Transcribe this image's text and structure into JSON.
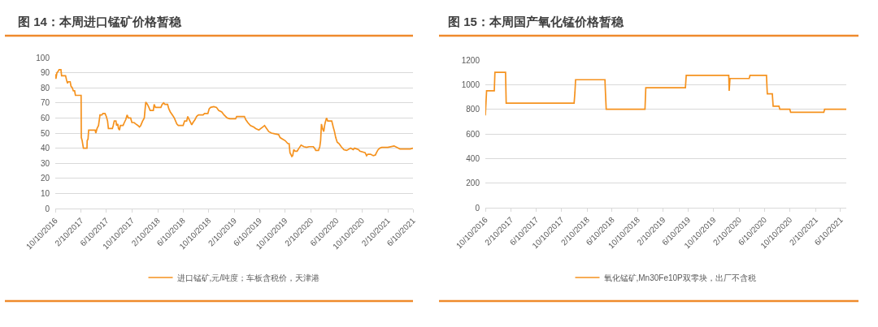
{
  "chart_data": [
    {
      "type": "line",
      "title": "图 14：本周进口锰矿价格暂稳",
      "x": [
        "2016-10-10",
        "2016-10-13",
        "2016-10-18",
        "2016-10-24",
        "2016-10-28",
        "2016-11-06",
        "2016-11-09",
        "2016-11-28",
        "2016-12-03",
        "2016-12-07",
        "2016-12-11",
        "2016-12-20",
        "2016-12-24",
        "2016-12-30",
        "2017-01-04",
        "2017-01-10",
        "2017-01-14",
        "2017-02-10",
        "2017-02-11",
        "2017-02-15",
        "2017-02-21",
        "2017-03-10",
        "2017-03-11",
        "2017-03-15",
        "2017-03-18",
        "2017-04-18",
        "2017-04-21",
        "2017-04-27",
        "2017-05-04",
        "2017-05-11",
        "2017-05-20",
        "2017-05-25",
        "2017-06-04",
        "2017-06-10",
        "2017-06-16",
        "2017-06-20",
        "2017-07-09",
        "2017-07-13",
        "2017-07-18",
        "2017-07-26",
        "2017-07-29",
        "2017-08-04",
        "2017-08-07",
        "2017-08-12",
        "2017-08-16",
        "2017-08-29",
        "2017-09-04",
        "2017-09-11",
        "2017-09-17",
        "2017-09-23",
        "2017-10-04",
        "2017-10-10",
        "2017-10-20",
        "2017-10-29",
        "2017-11-08",
        "2017-11-15",
        "2017-11-21",
        "2017-11-30",
        "2017-12-08",
        "2017-12-15",
        "2017-12-23",
        "2017-12-30",
        "2018-01-05",
        "2018-01-20",
        "2018-01-24",
        "2018-01-30",
        "2018-02-25",
        "2018-03-03",
        "2018-03-10",
        "2018-03-16",
        "2018-03-29",
        "2018-04-04",
        "2018-04-11",
        "2018-04-21",
        "2018-04-30",
        "2018-05-12",
        "2018-05-19",
        "2018-06-11",
        "2018-06-18",
        "2018-06-28",
        "2018-07-03",
        "2018-07-10",
        "2018-07-22",
        "2018-07-28",
        "2018-08-07",
        "2018-08-14",
        "2018-08-23",
        "2018-09-14",
        "2018-09-21",
        "2018-10-07",
        "2018-10-13",
        "2018-10-20",
        "2018-11-04",
        "2018-11-17",
        "2018-11-27",
        "2018-12-12",
        "2018-12-23",
        "2019-01-07",
        "2019-01-20",
        "2019-02-16",
        "2019-02-21",
        "2019-03-30",
        "2019-04-05",
        "2019-04-15",
        "2019-04-28",
        "2019-05-13",
        "2019-05-23",
        "2019-06-07",
        "2019-06-16",
        "2019-06-25",
        "2019-07-04",
        "2019-07-14",
        "2019-07-24",
        "2019-08-06",
        "2019-08-21",
        "2019-09-09",
        "2019-09-16",
        "2019-09-28",
        "2019-10-10",
        "2019-10-23",
        "2019-10-29",
        "2019-11-02",
        "2019-11-11",
        "2019-11-15",
        "2019-11-20",
        "2019-11-27",
        "2019-12-06",
        "2019-12-15",
        "2019-12-25",
        "2020-01-07",
        "2020-01-20",
        "2020-02-01",
        "2020-02-21",
        "2020-02-27",
        "2020-03-04",
        "2020-03-17",
        "2020-03-23",
        "2020-03-27",
        "2020-03-31",
        "2020-04-05",
        "2020-04-11",
        "2020-04-15",
        "2020-04-18",
        "2020-04-24",
        "2020-04-30",
        "2020-05-19",
        "2020-05-26",
        "2020-06-01",
        "2020-06-07",
        "2020-06-14",
        "2020-06-23",
        "2020-07-03",
        "2020-07-16",
        "2020-07-29",
        "2020-08-17",
        "2020-08-29",
        "2020-09-05",
        "2020-09-24",
        "2020-09-30",
        "2020-10-13",
        "2020-10-25",
        "2020-11-01",
        "2020-11-07",
        "2020-11-20",
        "2020-12-03",
        "2020-12-13",
        "2020-12-18",
        "2020-12-26",
        "2021-01-03",
        "2021-01-12",
        "2021-02-10",
        "2021-03-12",
        "2021-03-26",
        "2021-04-09",
        "2021-05-27",
        "2021-06-10"
      ],
      "series": [
        {
          "name": "进口锰矿,元/吨度；车板含税价，天津港",
          "color": "#f5921e",
          "values": [
            89,
            86,
            90,
            91,
            92,
            92,
            88,
            88,
            85,
            83,
            84,
            84,
            81,
            80,
            78,
            78,
            75,
            75,
            47,
            45,
            40,
            40,
            45,
            46,
            52,
            52,
            50,
            53,
            55,
            62,
            62,
            63,
            63,
            61,
            58,
            53,
            53,
            55,
            58,
            58,
            55,
            56,
            53,
            52,
            55,
            55,
            57,
            59,
            62,
            60,
            60,
            57,
            57,
            56,
            55,
            54,
            55,
            58,
            60,
            70.5,
            69,
            67,
            65,
            65,
            69,
            67,
            67,
            69,
            70,
            69,
            69,
            66,
            64,
            62,
            60,
            56,
            55,
            55,
            58,
            58,
            61,
            59,
            55.5,
            57,
            59,
            61,
            62,
            62,
            63,
            63,
            66,
            67,
            67.5,
            67,
            65,
            64,
            62,
            60,
            59.5,
            59.5,
            61,
            61,
            59,
            57,
            55,
            54,
            53,
            52,
            53,
            54,
            55,
            53,
            51,
            50,
            49.5,
            49,
            47,
            46,
            45,
            43,
            43,
            37,
            34.5,
            35,
            39,
            38,
            38,
            40,
            42,
            41,
            40.5,
            41,
            41,
            40,
            38.5,
            38.5,
            41,
            45,
            56,
            53,
            51,
            55,
            57,
            60,
            58,
            58,
            54,
            51,
            47,
            44,
            43,
            41,
            39,
            38.5,
            40,
            39,
            40,
            39,
            38,
            37.5,
            37,
            35,
            36,
            36,
            35,
            35.5,
            37,
            39,
            40,
            40.5,
            40.5,
            41.5,
            40.5,
            39.5,
            39.5,
            40
          ]
        }
      ],
      "xlim": [
        "2016-10-10",
        "2021-06-10"
      ],
      "xticks": [
        {
          "value": "2016-10-10",
          "label": "10/10/2016"
        },
        {
          "value": "2017-02-10",
          "label": "2/10/2017"
        },
        {
          "value": "2017-06-10",
          "label": "6/10/2017"
        },
        {
          "value": "2017-10-10",
          "label": "10/10/2017"
        },
        {
          "value": "2018-02-10",
          "label": "2/10/2018"
        },
        {
          "value": "2018-06-10",
          "label": "6/10/2018"
        },
        {
          "value": "2018-10-10",
          "label": "10/10/2018"
        },
        {
          "value": "2019-02-10",
          "label": "2/10/2019"
        },
        {
          "value": "2019-06-10",
          "label": "6/10/2019"
        },
        {
          "value": "2019-10-10",
          "label": "10/10/2019"
        },
        {
          "value": "2020-02-10",
          "label": "2/10/2020"
        },
        {
          "value": "2020-06-10",
          "label": "6/10/2020"
        },
        {
          "value": "2020-10-10",
          "label": "10/10/2020"
        },
        {
          "value": "2021-02-10",
          "label": "2/10/2021"
        },
        {
          "value": "2021-06-10",
          "label": "6/10/2021"
        }
      ],
      "ylim": [
        0,
        100
      ],
      "yticks": [
        0,
        10,
        20,
        30,
        40,
        50,
        60,
        70,
        80,
        90,
        100
      ],
      "grid": "y",
      "legend": "bottom"
    },
    {
      "type": "line",
      "title": "图 15：本周国产氧化锰价格暂稳",
      "x": [
        "2016-10-10",
        "2016-10-16",
        "2016-11-22",
        "2016-11-25",
        "2017-01-15",
        "2017-01-18",
        "2017-12-10",
        "2017-12-14",
        "2017-12-17",
        "2018-05-07",
        "2018-05-09",
        "2018-05-13",
        "2018-11-15",
        "2018-11-19",
        "2019-05-28",
        "2019-06-01",
        "2019-12-22",
        "2019-12-24",
        "2019-12-28",
        "2020-03-29",
        "2020-04-02",
        "2020-06-20",
        "2020-06-24",
        "2020-07-18",
        "2020-07-22",
        "2020-08-19",
        "2020-08-23",
        "2020-10-10",
        "2020-10-14",
        "2021-03-22",
        "2021-03-26",
        "2021-07-08"
      ],
      "series": [
        {
          "name": "氧化锰矿,Mn30Fe10P双零块，出厂不含税",
          "color": "#f5921e",
          "values": [
            750,
            950,
            950,
            1100,
            1100,
            850,
            850,
            940,
            1040,
            1040,
            950,
            800,
            800,
            975,
            975,
            1075,
            1075,
            950,
            1050,
            1050,
            1075,
            1075,
            925,
            925,
            825,
            825,
            800,
            800,
            775,
            775,
            800,
            800
          ]
        }
      ],
      "xlim": [
        "2016-10-10",
        "2021-07-08"
      ],
      "xticks": [
        {
          "value": "2016-10-10",
          "label": "10/10/2016"
        },
        {
          "value": "2017-02-10",
          "label": "2/10/2017"
        },
        {
          "value": "2017-06-10",
          "label": "6/10/2017"
        },
        {
          "value": "2017-10-10",
          "label": "10/10/2017"
        },
        {
          "value": "2018-02-10",
          "label": "2/10/2018"
        },
        {
          "value": "2018-06-10",
          "label": "6/10/2018"
        },
        {
          "value": "2018-10-10",
          "label": "10/10/2018"
        },
        {
          "value": "2019-02-10",
          "label": "2/10/2019"
        },
        {
          "value": "2019-06-10",
          "label": "6/10/2019"
        },
        {
          "value": "2019-10-10",
          "label": "10/10/2019"
        },
        {
          "value": "2020-02-10",
          "label": "2/10/2020"
        },
        {
          "value": "2020-06-10",
          "label": "6/10/2020"
        },
        {
          "value": "2020-10-10",
          "label": "10/10/2020"
        },
        {
          "value": "2021-02-10",
          "label": "2/10/2021"
        },
        {
          "value": "2021-06-10",
          "label": "6/10/2021"
        }
      ],
      "ylim": [
        0,
        1200
      ],
      "yticks": [
        0,
        200,
        400,
        600,
        800,
        1000,
        1200
      ],
      "grid": "y",
      "legend": "bottom"
    }
  ]
}
